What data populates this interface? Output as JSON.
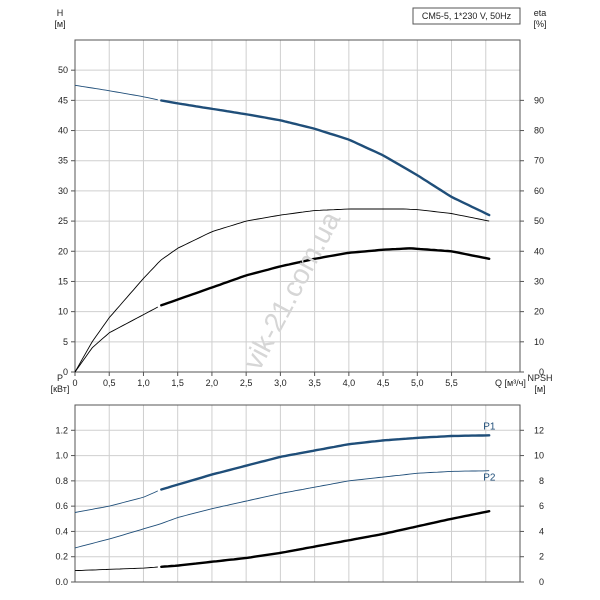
{
  "chart_data": [
    {
      "type": "line",
      "legend": "CM5-5, 1*230 V, 50Hz",
      "xlabel": "Q [м³/ч]",
      "x_ticks": [
        "0",
        "0,5",
        "1,0",
        "1,5",
        "2,0",
        "2,5",
        "3,0",
        "3,5",
        "4,0",
        "4,5",
        "5,0",
        "5,5"
      ],
      "xlim": [
        0,
        6.5
      ],
      "left_axis": {
        "label": "H",
        "unit": "[м]",
        "ticks": [
          "0",
          "5",
          "10",
          "15",
          "20",
          "25",
          "30",
          "35",
          "40",
          "45",
          "50"
        ],
        "ylim": [
          0,
          55
        ]
      },
      "right_axis": {
        "label": "eta",
        "unit": "[%]",
        "ticks": [
          "0",
          "10",
          "20",
          "30",
          "40",
          "50",
          "60",
          "70",
          "80",
          "90"
        ],
        "ylim": [
          0,
          110
        ]
      },
      "grid": true,
      "series": [
        {
          "axis": "left",
          "color": "#1f4e79",
          "x": [
            0,
            0.5,
            1.0,
            1.25,
            1.5,
            2.0,
            2.5,
            3.0,
            3.5,
            4.0,
            4.5,
            5.0,
            5.5,
            6.05
          ],
          "y": [
            47.5,
            46.6,
            45.6,
            45.0,
            44.5,
            43.6,
            42.7,
            41.7,
            40.3,
            38.5,
            35.9,
            32.6,
            29.0,
            26.0
          ],
          "start_bold": 1.25
        },
        {
          "axis": "right",
          "color": "#000000",
          "x": [
            0,
            0.25,
            0.5,
            1.0,
            1.25,
            1.5,
            2.0,
            2.5,
            3.0,
            3.5,
            4.0,
            4.5,
            4.8,
            5.0,
            5.5,
            6.05
          ],
          "y": [
            0,
            10,
            18,
            31,
            37,
            41,
            46.5,
            50,
            52,
            53.5,
            54,
            54,
            54,
            53.8,
            52.5,
            50
          ],
          "start_bold": 9999
        },
        {
          "axis": "right",
          "color": "#000000",
          "x": [
            0,
            0.25,
            0.5,
            1.0,
            1.25,
            1.5,
            2.0,
            2.5,
            3.0,
            3.5,
            4.0,
            4.5,
            4.9,
            5.0,
            5.5,
            6.05
          ],
          "y": [
            0,
            8,
            13,
            19,
            22,
            24,
            28,
            32,
            35,
            37.5,
            39.5,
            40.5,
            41,
            40.8,
            40,
            37.5
          ],
          "start_bold": 1.25
        }
      ]
    },
    {
      "type": "line",
      "xlim": [
        0,
        6.5
      ],
      "left_axis": {
        "label": "P",
        "unit": "[кВт]",
        "ticks": [
          "0.0",
          "0.2",
          "0.4",
          "0.6",
          "0.8",
          "1.0",
          "1.2"
        ],
        "ylim": [
          0,
          1.4
        ]
      },
      "right_axis": {
        "label": "NPSH",
        "unit": "[м]",
        "ticks": [
          "0",
          "2",
          "4",
          "6",
          "8",
          "10",
          "12"
        ],
        "ylim": [
          0,
          14
        ]
      },
      "grid": true,
      "series": [
        {
          "name": "P1",
          "axis": "left",
          "color": "#1f4e79",
          "x": [
            0,
            0.5,
            1.0,
            1.25,
            1.5,
            2.0,
            2.5,
            3.0,
            3.5,
            4.0,
            4.5,
            5.0,
            5.5,
            6.05
          ],
          "y": [
            0.55,
            0.6,
            0.67,
            0.73,
            0.77,
            0.85,
            0.92,
            0.99,
            1.04,
            1.09,
            1.12,
            1.14,
            1.155,
            1.16
          ],
          "start_bold": 1.25
        },
        {
          "name": "P2",
          "axis": "left",
          "color": "#1f4e79",
          "x": [
            0,
            0.5,
            1.0,
            1.25,
            1.5,
            2.0,
            2.5,
            3.0,
            3.5,
            4.0,
            4.5,
            5.0,
            5.5,
            6.05
          ],
          "y": [
            0.27,
            0.34,
            0.42,
            0.46,
            0.51,
            0.58,
            0.64,
            0.7,
            0.75,
            0.8,
            0.83,
            0.86,
            0.875,
            0.88
          ],
          "start_bold": 9999
        },
        {
          "axis": "right",
          "color": "#000000",
          "x": [
            0,
            0.5,
            1.0,
            1.25,
            1.5,
            2.0,
            2.5,
            3.0,
            3.5,
            4.0,
            4.5,
            5.0,
            5.5,
            6.05
          ],
          "y": [
            0.9,
            1.0,
            1.1,
            1.2,
            1.3,
            1.6,
            1.9,
            2.3,
            2.8,
            3.3,
            3.8,
            4.4,
            5.0,
            5.6
          ],
          "start_bold": 1.25
        }
      ]
    }
  ],
  "watermark": "vik-21.com.ua"
}
